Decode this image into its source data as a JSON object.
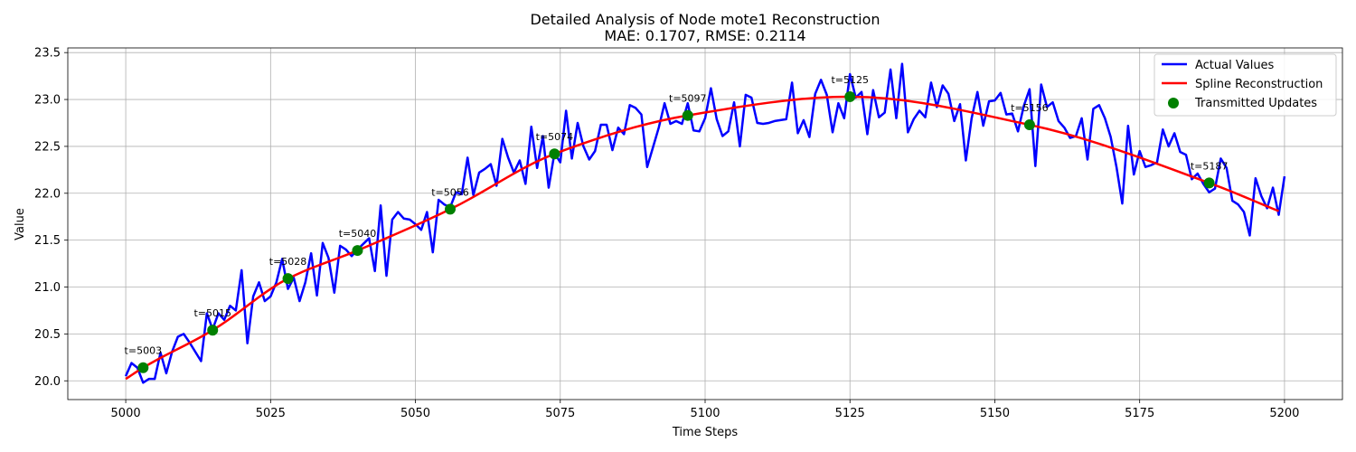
{
  "chart_data": {
    "type": "line",
    "title": "Detailed Analysis of Node mote1 Reconstruction",
    "subtitle": "MAE: 0.1707, RMSE: 0.2114",
    "xlabel": "Time Steps",
    "ylabel": "Value",
    "xlim": [
      4990,
      5210
    ],
    "ylim": [
      19.8,
      23.55
    ],
    "xticks": [
      5000,
      5025,
      5050,
      5075,
      5100,
      5125,
      5150,
      5175,
      5200
    ],
    "yticks": [
      20.0,
      20.5,
      21.0,
      21.5,
      22.0,
      22.5,
      23.0,
      23.5
    ],
    "grid": true,
    "legend_position": "top-right",
    "colors": {
      "actual": "#0000ff",
      "spline": "#ff0000",
      "updates": "#008000"
    },
    "series": [
      {
        "name": "Actual Values",
        "x_start": 5000,
        "values": [
          20.05,
          20.19,
          20.14,
          19.98,
          20.02,
          20.02,
          20.3,
          20.08,
          20.31,
          20.47,
          20.5,
          20.41,
          20.31,
          20.21,
          20.72,
          20.55,
          20.72,
          20.65,
          20.8,
          20.75,
          21.18,
          20.4,
          20.9,
          21.05,
          20.85,
          20.9,
          21.05,
          21.3,
          20.98,
          21.1,
          20.85,
          21.05,
          21.36,
          20.91,
          21.47,
          21.31,
          20.94,
          21.44,
          21.4,
          21.33,
          21.4,
          21.46,
          21.52,
          21.17,
          21.87,
          21.12,
          21.72,
          21.8,
          21.73,
          21.72,
          21.67,
          21.61,
          21.8,
          21.37,
          21.93,
          21.88,
          21.85,
          22.01,
          21.99,
          22.38,
          21.98,
          22.22,
          22.26,
          22.31,
          22.08,
          22.58,
          22.38,
          22.22,
          22.35,
          22.1,
          22.71,
          22.27,
          22.61,
          22.06,
          22.43,
          22.33,
          22.88,
          22.37,
          22.75,
          22.5,
          22.36,
          22.45,
          22.73,
          22.73,
          22.46,
          22.7,
          22.63,
          22.94,
          22.91,
          22.84,
          22.28,
          22.49,
          22.7,
          22.96,
          22.74,
          22.77,
          22.74,
          22.96,
          22.67,
          22.66,
          22.8,
          23.12,
          22.79,
          22.61,
          22.66,
          22.97,
          22.5,
          23.05,
          23.02,
          22.75,
          22.74,
          22.75,
          22.77,
          22.78,
          22.79,
          23.18,
          22.64,
          22.78,
          22.6,
          23.06,
          23.21,
          23.05,
          22.65,
          22.96,
          22.8,
          23.27,
          23.02,
          23.08,
          22.63,
          23.1,
          22.81,
          22.86,
          23.32,
          22.8,
          23.38,
          22.65,
          22.79,
          22.88,
          22.81,
          23.18,
          22.92,
          23.15,
          23.06,
          22.77,
          22.95,
          22.35,
          22.8,
          23.08,
          22.72,
          22.98,
          22.99,
          23.07,
          22.84,
          22.85,
          22.66,
          22.93,
          23.11,
          22.29,
          23.16,
          22.92,
          22.97,
          22.77,
          22.7,
          22.59,
          22.61,
          22.8,
          22.36,
          22.9,
          22.94,
          22.8,
          22.6,
          22.28,
          21.89,
          22.72,
          22.2,
          22.45,
          22.28,
          22.3,
          22.33,
          22.68,
          22.5,
          22.64,
          22.44,
          22.41,
          22.15,
          22.21,
          22.1,
          22.01,
          22.05,
          22.37,
          22.27,
          21.92,
          21.88,
          21.8,
          21.55,
          22.16,
          21.97,
          21.84,
          22.06,
          21.77,
          22.18
        ]
      },
      {
        "name": "Spline Reconstruction",
        "x": [
          5000,
          5003,
          5015,
          5028,
          5040,
          5056,
          5074,
          5097,
          5125,
          5156,
          5187,
          5199
        ],
        "values": [
          20.02,
          20.14,
          20.54,
          21.09,
          21.39,
          21.83,
          22.42,
          22.83,
          23.03,
          22.73,
          22.11,
          21.81
        ]
      }
    ],
    "transmitted_updates": {
      "name": "Transmitted Updates",
      "x": [
        5003,
        5015,
        5028,
        5040,
        5056,
        5074,
        5097,
        5125,
        5156,
        5187
      ],
      "y": [
        20.14,
        20.54,
        21.09,
        21.39,
        21.83,
        22.42,
        22.83,
        23.03,
        22.73,
        22.11
      ],
      "labels": [
        "t=5003",
        "t=5015",
        "t=5028",
        "t=5040",
        "t=5056",
        "t=5074",
        "t=5097",
        "t=5125",
        "t=5156",
        "t=5187"
      ]
    }
  }
}
